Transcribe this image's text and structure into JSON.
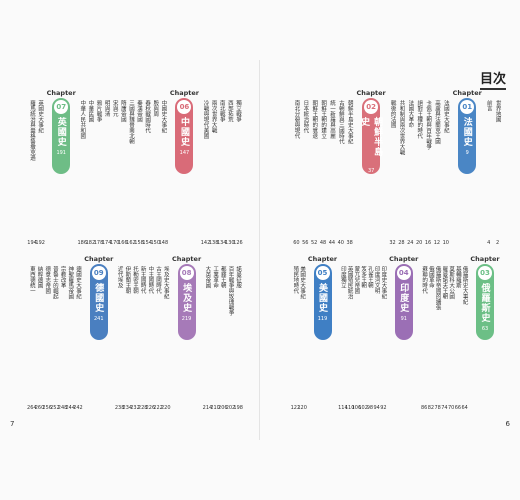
{
  "header": {
    "title": "目次"
  },
  "page_numbers": {
    "left": "7",
    "right": "6"
  },
  "rows": [
    {
      "items": [
        {
          "text": "世界地圖",
          "page": 2
        },
        {
          "text": "前言",
          "page": 4
        },
        {
          "chapter": "Chapter",
          "number": "01",
          "title": "法國史",
          "page": 9,
          "color": "#4a86c5"
        },
        {
          "text": "法國史大事紀",
          "page": 10
        },
        {
          "text": "高盧與法蘭克王國",
          "page": 12
        },
        {
          "text": "卡佩王朝與百年戰爭",
          "page": 16
        },
        {
          "text": "絕對王權的時代",
          "page": 20
        },
        {
          "text": "法國大革命",
          "page": 24
        },
        {
          "text": "共和制與兩次世界大戰",
          "page": 28
        },
        {
          "text": "戰後的法國",
          "page": 32
        },
        {
          "chapter": "Chapter",
          "number": "02",
          "title": "朝鮮半島史",
          "page": 37,
          "color": "#d9707a"
        },
        {
          "text": "朝鮮半島史大事紀",
          "page": 38
        },
        {
          "text": "古朝鮮與三國時代",
          "page": 40
        },
        {
          "text": "統一新羅與高麗",
          "page": 44
        },
        {
          "text": "朝鮮王朝的建立",
          "page": 48
        },
        {
          "text": "朝鮮王朝的衰退",
          "page": 52
        },
        {
          "text": "日本統治時代",
          "page": 56
        },
        {
          "text": "南北分裂與現代",
          "page": 60
        }
      ]
    },
    {
      "items": [
        {
          "chapter": "Chapter",
          "number": "03",
          "title": "俄羅斯史",
          "page": 63,
          "color": "#6cbf86"
        },
        {
          "text": "俄羅斯史大事紀",
          "page": 64
        },
        {
          "text": "基輔羅斯",
          "page": 66
        },
        {
          "text": "莫斯科大公國",
          "page": 70
        },
        {
          "text": "羅曼諾夫王朝",
          "page": 74
        },
        {
          "text": "俄羅斯帝國的擴張",
          "page": 78
        },
        {
          "text": "俄國革命",
          "page": 82
        },
        {
          "text": "蘇聯的時代",
          "page": 86
        },
        {
          "chapter": "Chapter",
          "number": "04",
          "title": "印度史",
          "page": 91,
          "color": "#9b6fb5"
        },
        {
          "text": "印度史大事紀",
          "page": 92
        },
        {
          "text": "印度河文明",
          "page": 94
        },
        {
          "text": "孔雀王朝",
          "page": 98
        },
        {
          "text": "笈多王朝",
          "page": 102
        },
        {
          "text": "蒙兀兒帝國",
          "page": 106
        },
        {
          "text": "英國殖民統治",
          "page": 110
        },
        {
          "text": "印度獨立",
          "page": 114
        },
        {
          "chapter": "Chapter",
          "number": "05",
          "title": "美國史",
          "page": 119,
          "color": "#3f7fc4"
        },
        {
          "text": "美國史大事紀",
          "page": 120
        },
        {
          "text": "殖民地時代",
          "page": 122
        }
      ]
    },
    {
      "items": [
        {
          "text": "獨立戰爭",
          "page": 126
        },
        {
          "text": "西部拓荒",
          "page": 130
        },
        {
          "text": "南北戰爭",
          "page": 134
        },
        {
          "text": "兩次世界大戰",
          "page": 138
        },
        {
          "text": "冷戰與現代美國",
          "page": 142
        },
        {
          "chapter": "Chapter",
          "number": "06",
          "title": "中國史",
          "page": 147,
          "color": "#d96b78"
        },
        {
          "text": "中國史大事紀",
          "page": 148
        },
        {
          "text": "殷與周",
          "page": 150
        },
        {
          "text": "春秋戰國時代",
          "page": 154
        },
        {
          "text": "秦漢帝國",
          "page": 158
        },
        {
          "text": "三國與魏晉南北朝",
          "page": 162
        },
        {
          "text": "隋唐帝國",
          "page": 166
        },
        {
          "text": "宋與元",
          "page": 170
        },
        {
          "text": "明與清",
          "page": 174
        },
        {
          "text": "鴉片戰爭",
          "page": 178
        },
        {
          "text": "中華民國",
          "page": 182
        },
        {
          "text": "中華人民共和國",
          "page": 186
        },
        {
          "chapter": "Chapter",
          "number": "07",
          "title": "英國史",
          "page": 191,
          "color": "#6ebd86"
        },
        {
          "text": "英國史大事紀",
          "page": 192
        },
        {
          "text": "羅馬統治與盎格魯撒克遜",
          "page": 194
        }
      ]
    },
    {
      "items": [
        {
          "text": "諾曼征服",
          "page": 198
        },
        {
          "text": "百年戰爭與玫瑰戰爭",
          "page": 202
        },
        {
          "text": "都鐸王朝",
          "page": 206
        },
        {
          "text": "工業革命",
          "page": 210
        },
        {
          "text": "大英帝國",
          "page": 214
        },
        {
          "chapter": "Chapter",
          "number": "08",
          "title": "埃及史",
          "page": 219,
          "color": "#a67ab8"
        },
        {
          "text": "埃及史大事紀",
          "page": 220
        },
        {
          "text": "古王國時代",
          "page": 222
        },
        {
          "text": "中王國時代",
          "page": 226
        },
        {
          "text": "新王國時代",
          "page": 228
        },
        {
          "text": "托勒密王朝",
          "page": 232
        },
        {
          "text": "伊斯蘭王朝",
          "page": 234
        },
        {
          "text": "近代埃及",
          "page": 238
        },
        {
          "chapter": "Chapter",
          "number": "09",
          "title": "德國史",
          "page": 241,
          "color": "#4a7fc0"
        },
        {
          "text": "德國史大事紀",
          "page": 242
        },
        {
          "text": "神聖羅馬帝國",
          "page": 244
        },
        {
          "text": "宗教改革",
          "page": 248
        },
        {
          "text": "普魯士的崛起",
          "page": 252
        },
        {
          "text": "德意志帝國",
          "page": 256
        },
        {
          "text": "納粹德國",
          "page": 260
        },
        {
          "text": "東西德統一",
          "page": 264
        }
      ]
    }
  ]
}
